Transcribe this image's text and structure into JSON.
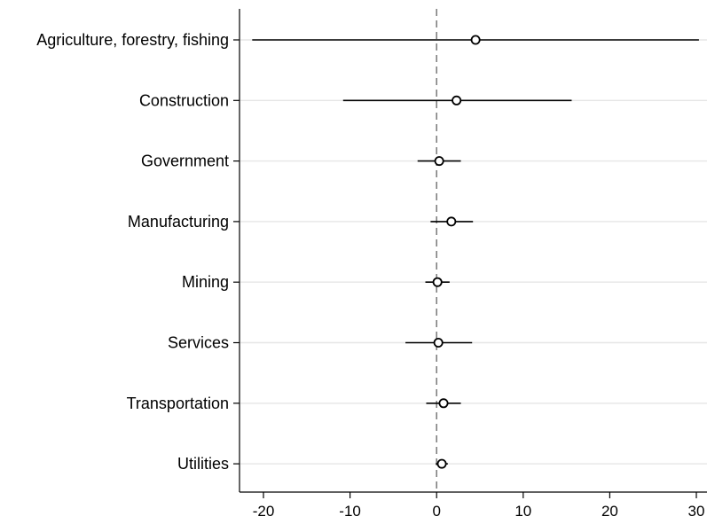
{
  "chart_data": {
    "type": "scatter",
    "subtype": "coefficient-plot",
    "orientation": "horizontal",
    "title": "",
    "xlabel": "",
    "ylabel": "",
    "xlim": [
      -23,
      31
    ],
    "xticks": [
      -20,
      -10,
      0,
      10,
      20,
      30
    ],
    "xtick_labels": [
      "-20",
      "-10",
      "0",
      "10",
      "20",
      "30"
    ],
    "reference_line": {
      "x": 0,
      "style": "dashed",
      "color": "#808080"
    },
    "grid": "horizontal",
    "legend": "none",
    "colors": {
      "grid": "#e6e6e6",
      "marks": "#000000",
      "axis": "#000000"
    },
    "categories": [
      "Agriculture, forestry, fishing",
      "Construction",
      "Government",
      "Manufacturing",
      "Mining",
      "Services",
      "Transportation",
      "Utilities"
    ],
    "estimates": [
      4.5,
      2.3,
      0.3,
      1.7,
      0.1,
      0.2,
      0.8,
      0.6
    ],
    "ci_low": [
      -21.3,
      -10.8,
      -2.2,
      -0.7,
      -1.3,
      -3.6,
      -1.2,
      -0.1
    ],
    "ci_high": [
      30.3,
      15.6,
      2.8,
      4.2,
      1.5,
      4.1,
      2.8,
      1.3
    ]
  }
}
